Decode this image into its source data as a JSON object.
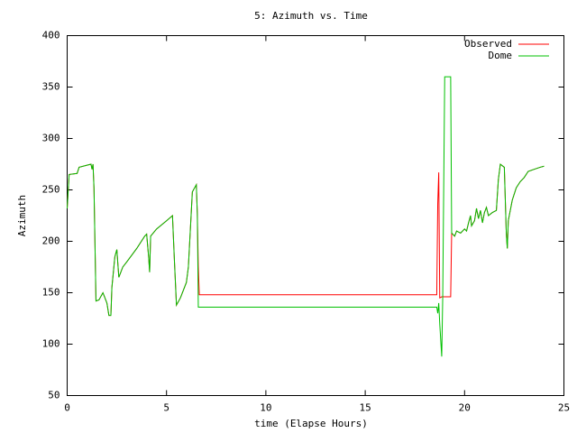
{
  "chart_data": {
    "type": "line",
    "title": "5: Azimuth vs. Time",
    "xlabel": "time (Elapse Hours)",
    "ylabel": "Azimuth",
    "x": [
      0,
      0.1,
      0.5,
      0.6,
      1.0,
      1.2,
      1.25,
      1.3,
      1.35,
      1.45,
      1.6,
      1.8,
      2.0,
      2.1,
      2.2,
      2.25,
      2.4,
      2.5,
      2.6,
      2.8,
      3.0,
      3.5,
      3.9,
      4.0,
      4.1,
      4.15,
      4.2,
      4.5,
      5.0,
      5.3,
      5.4,
      5.5,
      5.7,
      6.0,
      6.1,
      6.3,
      6.5,
      6.55,
      6.6,
      6.65,
      18.6,
      18.65,
      18.7,
      18.75,
      18.85,
      18.9,
      19.0,
      19.3,
      19.35,
      19.5,
      19.6,
      19.8,
      20.0,
      20.1,
      20.2,
      20.3,
      20.35,
      20.5,
      20.6,
      20.7,
      20.8,
      20.9,
      21.0,
      21.1,
      21.2,
      21.4,
      21.6,
      21.7,
      21.8,
      22.0,
      22.1,
      22.15,
      22.2,
      22.4,
      22.6,
      22.8,
      23.0,
      23.2,
      23.5,
      23.8,
      24.0
    ],
    "series": [
      {
        "name": "Observed",
        "color": "#ff0000",
        "values": [
          232,
          265,
          266,
          272,
          274,
          275,
          270,
          275,
          252,
          142,
          143,
          150,
          140,
          128,
          128,
          155,
          185,
          192,
          165,
          175,
          180,
          193,
          205,
          207,
          185,
          170,
          205,
          212,
          220,
          225,
          180,
          138,
          145,
          160,
          175,
          248,
          255,
          227,
          175,
          148,
          148,
          237,
          267,
          145,
          146,
          146,
          146,
          146,
          208,
          205,
          210,
          208,
          212,
          210,
          218,
          225,
          215,
          220,
          232,
          222,
          230,
          218,
          228,
          233,
          225,
          228,
          230,
          260,
          275,
          272,
          208,
          193,
          220,
          240,
          252,
          258,
          262,
          268,
          270,
          272,
          273
        ]
      },
      {
        "name": "Dome",
        "color": "#00c000",
        "values": [
          232,
          265,
          266,
          272,
          274,
          275,
          270,
          275,
          252,
          142,
          143,
          150,
          140,
          128,
          128,
          155,
          185,
          192,
          165,
          175,
          180,
          193,
          205,
          207,
          185,
          170,
          205,
          212,
          220,
          225,
          180,
          138,
          145,
          160,
          175,
          248,
          255,
          227,
          136,
          136,
          136,
          130,
          140,
          120,
          88,
          145,
          360,
          360,
          208,
          205,
          210,
          208,
          212,
          210,
          218,
          225,
          215,
          220,
          232,
          222,
          230,
          218,
          228,
          233,
          225,
          228,
          230,
          260,
          275,
          272,
          208,
          193,
          220,
          240,
          252,
          258,
          262,
          268,
          270,
          272,
          273
        ]
      }
    ],
    "xlim": [
      0,
      25
    ],
    "xticks": [
      0,
      5,
      10,
      15,
      20,
      25
    ],
    "ylim": [
      50,
      400
    ],
    "yticks": [
      50,
      100,
      150,
      200,
      250,
      300,
      350,
      400
    ],
    "legend": "upper right"
  }
}
